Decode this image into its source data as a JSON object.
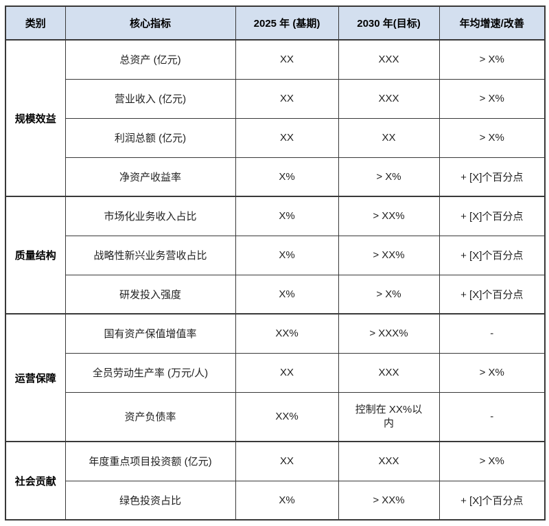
{
  "colors": {
    "header_bg": "#d3dfef",
    "border": "#383838",
    "text": "#212121",
    "page_bg": "#ffffff"
  },
  "table": {
    "header": {
      "category": "类别",
      "indicator": "核心指标",
      "base": "2025 年 (基期)",
      "target": "2030 年(目标)",
      "growth": "年均增速/改善"
    },
    "groups": [
      {
        "name": "规模效益",
        "rows": [
          {
            "indicator": "总资产 (亿元)",
            "base": "XX",
            "target": "XXX",
            "growth": "> X%"
          },
          {
            "indicator": "营业收入 (亿元)",
            "base": "XX",
            "target": "XXX",
            "growth": "> X%"
          },
          {
            "indicator": "利润总额 (亿元)",
            "base": "XX",
            "target": "XX",
            "growth": "> X%"
          },
          {
            "indicator": "净资产收益率",
            "base": "X%",
            "target": "> X%",
            "growth": "+ [X]个百分点"
          }
        ]
      },
      {
        "name": "质量结构",
        "rows": [
          {
            "indicator": "市场化业务收入占比",
            "base": "X%",
            "target": "> XX%",
            "growth": "+ [X]个百分点"
          },
          {
            "indicator": "战略性新兴业务营收占比",
            "base": "X%",
            "target": "> XX%",
            "growth": "+ [X]个百分点"
          },
          {
            "indicator": "研发投入强度",
            "base": "X%",
            "target": "> X%",
            "growth": "+ [X]个百分点"
          }
        ]
      },
      {
        "name": "运营保障",
        "rows": [
          {
            "indicator": "国有资产保值增值率",
            "base": "XX%",
            "target": "> XXX%",
            "growth": "-"
          },
          {
            "indicator": "全员劳动生产率 (万元/人)",
            "base": "XX",
            "target": "XXX",
            "growth": "> X%"
          },
          {
            "indicator": "资产负债率",
            "base": "XX%",
            "target": "控制在 XX%以内",
            "growth": "-"
          }
        ]
      },
      {
        "name": "社会贡献",
        "rows": [
          {
            "indicator": "年度重点项目投资额 (亿元)",
            "base": "XX",
            "target": "XXX",
            "growth": "> X%"
          },
          {
            "indicator": "绿色投资占比",
            "base": "X%",
            "target": "> XX%",
            "growth": "+ [X]个百分点"
          }
        ]
      }
    ]
  }
}
